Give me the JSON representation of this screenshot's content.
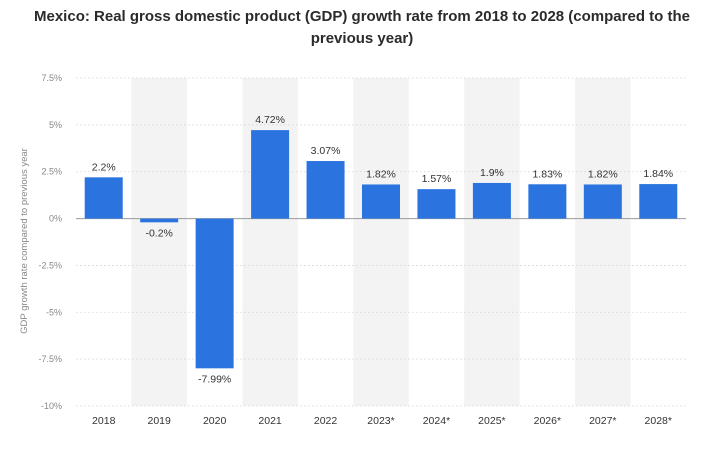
{
  "chart_data": {
    "type": "bar",
    "title": "Mexico: Real gross domestic product (GDP) growth rate from 2018 to 2028 (compared to the previous year)",
    "xlabel": "",
    "ylabel": "GDP growth rate compared to previous year",
    "ylim": [
      -10,
      7.5
    ],
    "y_ticks": [
      7.5,
      5,
      2.5,
      0,
      -2.5,
      -5,
      -7.5,
      -10
    ],
    "y_tick_labels": [
      "7.5%",
      "5%",
      "2.5%",
      "0%",
      "-2.5%",
      "-5%",
      "-7.5%",
      "-10%"
    ],
    "categories": [
      "2018",
      "2019",
      "2020",
      "2021",
      "2022",
      "2023*",
      "2024*",
      "2025*",
      "2026*",
      "2027*",
      "2028*"
    ],
    "values": [
      2.2,
      -0.2,
      -7.99,
      4.72,
      3.07,
      1.82,
      1.57,
      1.9,
      1.83,
      1.82,
      1.84
    ],
    "value_labels": [
      "2.2%",
      "-0.2%",
      "-7.99%",
      "4.72%",
      "3.07%",
      "1.82%",
      "1.57%",
      "1.9%",
      "1.83%",
      "1.82%",
      "1.84%"
    ],
    "bar_color": "#2b74e0",
    "band_color": "#f3f3f3",
    "grid": true
  }
}
